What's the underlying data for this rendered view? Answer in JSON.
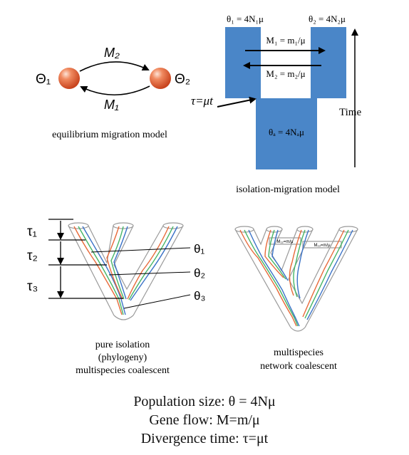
{
  "colors": {
    "block_fill": "#4a86c8",
    "sphere_fill": "#e8683f",
    "lineage_red": "#e86a3a",
    "lineage_green": "#45b565",
    "lineage_blue": "#3a72c7",
    "tree_outline": "#9a9a9a"
  },
  "equilibrium": {
    "theta1": "Θ₁",
    "theta2": "Θ₂",
    "m_top": "M₂",
    "m_bottom": "M₁",
    "caption": "equilibrium migration model"
  },
  "isolation_migration": {
    "theta1_label": "θ₁ = 4N₁μ",
    "theta2_label": "θ₂ = 4N₂μ",
    "m1_label": "M₁ = m₁/μ",
    "m2_label": "M₂ = m₂/μ",
    "thetaA_label": "θₐ = 4Nₐμ",
    "tau_label": "τ=μt",
    "time_label": "Time",
    "caption": "isolation-migration model"
  },
  "phylogeny": {
    "tau1": "τ₁",
    "tau2": "τ₂",
    "tau3": "τ₃",
    "theta1": "θ₁",
    "theta2": "θ₂",
    "theta3": "θ₃",
    "caption_line1": "pure isolation",
    "caption_line2": "(phylogeny)",
    "caption_line3": "multispecies coalescent"
  },
  "network": {
    "m_label_a": "M₁₂=m/μ",
    "m_label_b": "M₁₃=m/μ",
    "caption_line1": "multispecies",
    "caption_line2": "network coalescent"
  },
  "footer": {
    "line1": "Population size: θ = 4Nμ",
    "line2": "Gene flow: M=m/μ",
    "line3": "Divergence time: τ=μt"
  }
}
